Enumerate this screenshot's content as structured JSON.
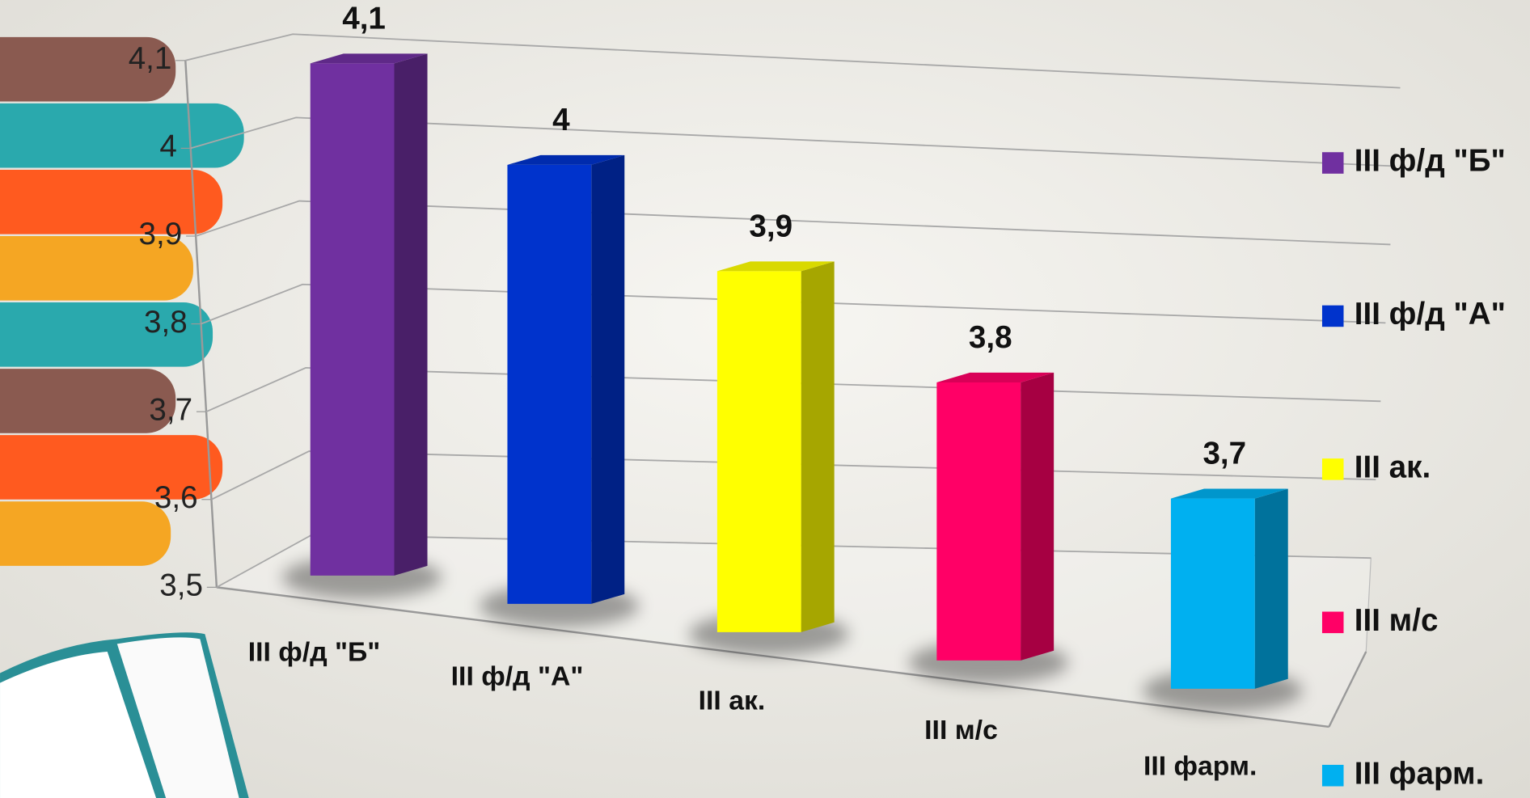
{
  "chart_data": {
    "type": "bar3d",
    "categories": [
      "III ф/д \"Б\"",
      "III ф/д \"А\"",
      "III ак.",
      "III м/с",
      "III фарм."
    ],
    "values": [
      4.1,
      4,
      3.9,
      3.8,
      3.7
    ],
    "value_labels": [
      "4,1",
      "4",
      "3,9",
      "3,8",
      "3,7"
    ],
    "colors": [
      "#7030a0",
      "#0033cc",
      "#ffff00",
      "#ff0066",
      "#00b0f0"
    ],
    "ylim": [
      3.5,
      4.1
    ],
    "yticks": [
      {
        "value": 3.5,
        "label": "3,5"
      },
      {
        "value": 3.6,
        "label": "3,6"
      },
      {
        "value": 3.7,
        "label": "3,7"
      },
      {
        "value": 3.8,
        "label": "3,8"
      },
      {
        "value": 3.9,
        "label": "3,9"
      },
      4,
      {
        "value": 4.1,
        "label": "4,1"
      }
    ],
    "grid": true,
    "legend": "right"
  }
}
